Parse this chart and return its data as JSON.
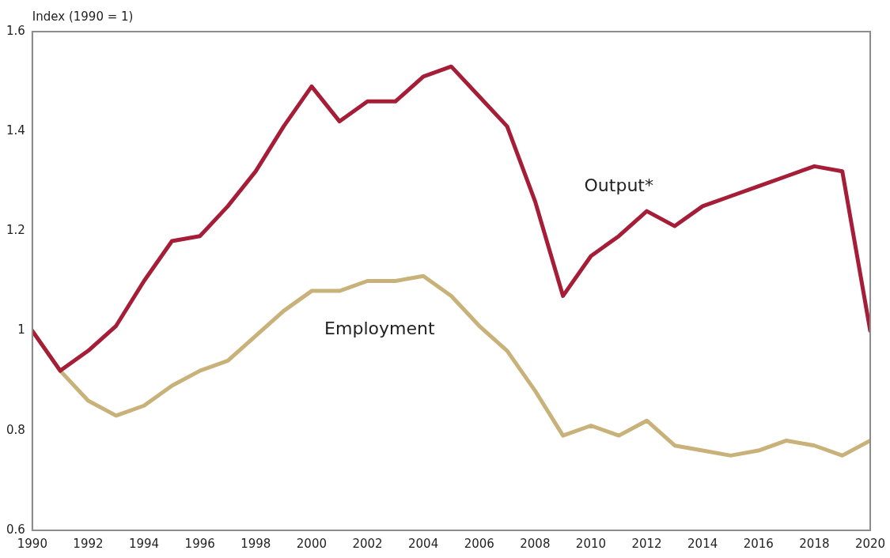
{
  "chart_data": {
    "type": "line",
    "ylabel": "Index (1990 = 1)",
    "x": [
      1990,
      1991,
      1992,
      1993,
      1994,
      1995,
      1996,
      1997,
      1998,
      1999,
      2000,
      2001,
      2002,
      2003,
      2004,
      2005,
      2006,
      2007,
      2008,
      2009,
      2010,
      2011,
      2012,
      2013,
      2014,
      2015,
      2016,
      2017,
      2018,
      2019,
      2020
    ],
    "series": [
      {
        "name": "Output*",
        "color": "#a51d36",
        "values": [
          1.0,
          0.92,
          0.96,
          1.01,
          1.1,
          1.18,
          1.19,
          1.25,
          1.32,
          1.41,
          1.49,
          1.42,
          1.46,
          1.46,
          1.51,
          1.53,
          1.47,
          1.41,
          1.26,
          1.07,
          1.15,
          1.19,
          1.24,
          1.21,
          1.25,
          1.27,
          1.29,
          1.31,
          1.33,
          1.32,
          1.0
        ]
      },
      {
        "name": "Employment",
        "color": "#c8b27a",
        "values": [
          1.0,
          0.92,
          0.86,
          0.83,
          0.85,
          0.89,
          0.92,
          0.94,
          0.99,
          1.04,
          1.08,
          1.08,
          1.1,
          1.1,
          1.11,
          1.07,
          1.01,
          0.96,
          0.88,
          0.79,
          0.81,
          0.79,
          0.82,
          0.77,
          0.76,
          0.75,
          0.76,
          0.78,
          0.77,
          0.75,
          0.78
        ]
      }
    ],
    "xlim": [
      1990,
      2020
    ],
    "xticks": [
      1990,
      1992,
      1994,
      1996,
      1998,
      2000,
      2002,
      2004,
      2006,
      2008,
      2010,
      2012,
      2014,
      2016,
      2018,
      2020
    ],
    "ylim": [
      0.6,
      1.6
    ],
    "yticks": [
      0.6,
      0.8,
      1,
      1.2,
      1.4,
      1.6
    ],
    "grid": false,
    "legend": false,
    "marker": "none",
    "line_style": "solid"
  }
}
